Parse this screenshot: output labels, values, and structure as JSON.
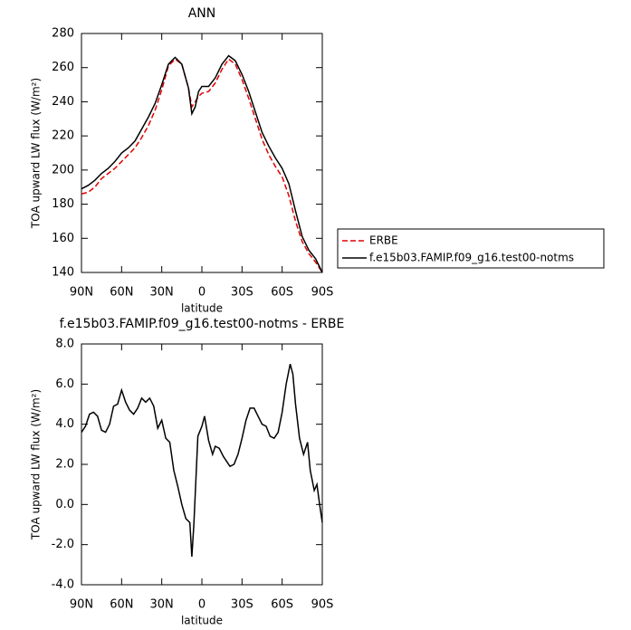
{
  "chart_data": [
    {
      "type": "line",
      "title": "ANN",
      "xlabel": "latitude",
      "ylabel": "TOA upward LW flux (W/m²)",
      "x": [
        90,
        85,
        80,
        75,
        70,
        65,
        60,
        55,
        50,
        45,
        40,
        35,
        30,
        25,
        20,
        15,
        10,
        7.5,
        5,
        2.5,
        0,
        -5,
        -10,
        -15,
        -20,
        -25,
        -30,
        -35,
        -40,
        -45,
        -50,
        -55,
        -60,
        -65,
        -70,
        -75,
        -80,
        -85,
        -90
      ],
      "series": [
        {
          "name": "ERBE",
          "color": "#e00000",
          "dashed": true,
          "values": [
            186,
            187,
            190,
            195,
            198,
            201,
            205,
            209,
            213,
            219,
            226,
            235,
            247,
            261,
            265,
            262,
            248,
            237,
            240,
            243,
            245,
            246,
            251,
            259,
            265,
            262,
            253,
            242,
            230,
            218,
            209,
            202,
            196,
            185,
            170,
            158,
            151,
            146,
            140
          ]
        },
        {
          "name": "f.e15b03.FAMIP.f09_g16.test00-notms",
          "color": "#000000",
          "dashed": false,
          "values": [
            189,
            191,
            194,
            198,
            201,
            205,
            210,
            213,
            217,
            224,
            231,
            239,
            250,
            262,
            266,
            262,
            248,
            233,
            237,
            246,
            249,
            249,
            254,
            262,
            267,
            264,
            256,
            246,
            234,
            222,
            214,
            207,
            201,
            192,
            176,
            161,
            153,
            148,
            140
          ]
        }
      ],
      "xlim": [
        90,
        -90
      ],
      "ylim": [
        140,
        280
      ],
      "xticks": [
        {
          "value": 90,
          "label": "90N"
        },
        {
          "value": 60,
          "label": "60N"
        },
        {
          "value": 30,
          "label": "30N"
        },
        {
          "value": 0,
          "label": "0"
        },
        {
          "value": -30,
          "label": "30S"
        },
        {
          "value": -60,
          "label": "60S"
        },
        {
          "value": -90,
          "label": "90S"
        }
      ],
      "yticks": [
        140,
        160,
        180,
        200,
        220,
        240,
        260,
        280
      ],
      "legend": "right"
    },
    {
      "type": "line",
      "title": "f.e15b03.FAMIP.f09_g16.test00-notms - ERBE",
      "xlabel": "latitude",
      "ylabel": "TOA upward LW flux (W/m²)",
      "x": [
        90,
        87,
        84,
        81,
        78,
        75,
        72,
        69,
        66,
        63,
        60,
        57,
        54,
        51,
        48,
        45,
        42,
        39,
        36,
        33,
        30,
        27,
        24,
        21,
        18,
        15,
        12,
        9,
        7.5,
        6,
        3,
        0,
        -2,
        -5,
        -8,
        -10,
        -13,
        -16,
        -19,
        -21,
        -24,
        -27,
        -30,
        -33,
        -36,
        -39,
        -42,
        -45,
        -48,
        -51,
        -54,
        -57,
        -60,
        -63,
        -66,
        -68,
        -70,
        -73,
        -76,
        -79,
        -81,
        -84,
        -86,
        -88,
        -90
      ],
      "series": [
        {
          "color": "#000000",
          "dashed": false,
          "values": [
            3.6,
            3.9,
            4.5,
            4.6,
            4.4,
            3.7,
            3.6,
            4.0,
            4.9,
            5.0,
            5.7,
            5.1,
            4.7,
            4.5,
            4.8,
            5.3,
            5.1,
            5.3,
            4.9,
            3.8,
            4.2,
            3.3,
            3.1,
            1.7,
            0.9,
            0.0,
            -0.7,
            -0.9,
            -2.6,
            -1.0,
            3.4,
            3.9,
            4.4,
            3.2,
            2.5,
            2.9,
            2.8,
            2.4,
            2.1,
            1.9,
            2.0,
            2.5,
            3.3,
            4.2,
            4.8,
            4.8,
            4.4,
            4.0,
            3.9,
            3.4,
            3.3,
            3.6,
            4.6,
            6.0,
            7.0,
            6.5,
            5.0,
            3.3,
            2.5,
            3.1,
            1.7,
            0.7,
            1.0,
            0.0,
            -0.9
          ]
        }
      ],
      "xlim": [
        90,
        -90
      ],
      "ylim": [
        -4,
        8
      ],
      "xticks": [
        {
          "value": 90,
          "label": "90N"
        },
        {
          "value": 60,
          "label": "60N"
        },
        {
          "value": 30,
          "label": "30N"
        },
        {
          "value": 0,
          "label": "0"
        },
        {
          "value": -30,
          "label": "30S"
        },
        {
          "value": -60,
          "label": "60S"
        },
        {
          "value": -90,
          "label": "90S"
        }
      ],
      "yticks": [
        {
          "value": -4,
          "label": "-4.0"
        },
        {
          "value": -2,
          "label": "-2.0"
        },
        {
          "value": 0,
          "label": "0.0"
        },
        {
          "value": 2,
          "label": "2.0"
        },
        {
          "value": 4,
          "label": "4.0"
        },
        {
          "value": 6,
          "label": "6.0"
        },
        {
          "value": 8,
          "label": "8.0"
        }
      ]
    }
  ]
}
